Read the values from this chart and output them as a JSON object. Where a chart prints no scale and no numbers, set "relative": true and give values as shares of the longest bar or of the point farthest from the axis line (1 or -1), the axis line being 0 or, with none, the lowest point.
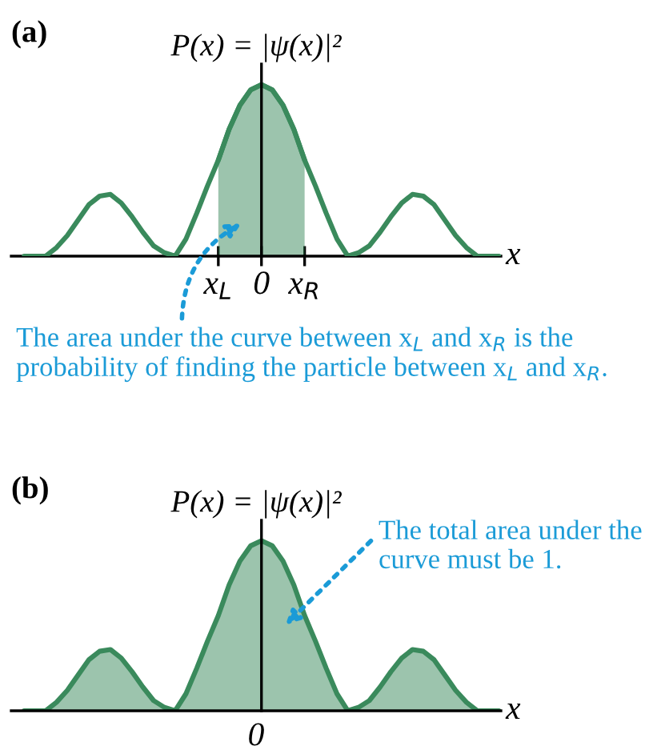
{
  "chart_data": [
    {
      "type": "line",
      "title": "(a)",
      "subtitle": "P(x) = |ψ(x)|²",
      "xlabel": "x",
      "relative": true,
      "tick_labels": "x",
      "categories": [
        null,
        null,
        null,
        null,
        null,
        null,
        null,
        null,
        null,
        null,
        null,
        null,
        null,
        null,
        null,
        null,
        null,
        null,
        "x$_{L}$",
        null,
        null,
        null,
        "0",
        null,
        null,
        null,
        "x$_{R}$",
        null,
        null,
        null,
        null,
        null,
        null,
        null,
        null,
        null,
        null,
        null,
        null,
        null,
        null,
        null,
        null,
        null,
        null
      ],
      "series": [
        {
          "color": "#3a8a5c",
          "values": [
            0,
            0,
            0,
            0.05,
            0.12,
            0.21,
            0.3,
            0.35,
            0.36,
            0.31,
            0.23,
            0.14,
            0.06,
            0.02,
            0,
            0.1,
            0.25,
            0.41,
            0.56,
            0.74,
            0.88,
            0.97,
            1,
            0.97,
            0.88,
            0.74,
            0.56,
            0.41,
            0.25,
            0.1,
            0,
            0.02,
            0.06,
            0.14,
            0.23,
            0.31,
            0.36,
            0.35,
            0.3,
            0.21,
            0.12,
            0.05,
            0,
            0,
            0
          ]
        },
        {
          "type": "area",
          "color": "#3a8a5c",
          "values": [
            null,
            null,
            null,
            null,
            null,
            null,
            null,
            null,
            null,
            null,
            null,
            null,
            null,
            null,
            null,
            null,
            null,
            null,
            0.56,
            0.74,
            0.88,
            0.97,
            1,
            0.97,
            0.88,
            0.74,
            0.56,
            null,
            null,
            null,
            null,
            null,
            null,
            null,
            null,
            null,
            null,
            null,
            null,
            null,
            null,
            null,
            null,
            null,
            null
          ]
        }
      ],
      "annotations": [
        "The area under the curve between x$_{L}$ and x$_{R}$ is the probability of finding the particle between x$_{L}$ and x$_{R}$."
      ]
    },
    {
      "type": "area",
      "title": "(b)",
      "subtitle": "P(x) = |ψ(x)|²",
      "xlabel": "x",
      "relative": true,
      "tick_labels": "x",
      "categories": [
        null,
        null,
        null,
        null,
        null,
        null,
        null,
        null,
        null,
        null,
        null,
        null,
        null,
        null,
        null,
        null,
        null,
        null,
        null,
        null,
        null,
        null,
        null,
        null,
        null,
        null,
        null,
        null,
        null,
        null,
        null,
        null,
        null,
        null,
        null,
        null,
        null,
        null,
        null,
        null,
        null,
        null,
        null,
        null,
        null
      ],
      "series": [
        {
          "color": "#3a8a5c",
          "values": [
            0,
            0,
            0,
            0.05,
            0.12,
            0.21,
            0.3,
            0.35,
            0.36,
            0.31,
            0.23,
            0.14,
            0.06,
            0.02,
            0,
            0.1,
            0.25,
            0.41,
            0.56,
            0.74,
            0.88,
            0.97,
            1,
            0.97,
            0.88,
            0.74,
            0.56,
            0.41,
            0.25,
            0.1,
            0,
            0.02,
            0.06,
            0.14,
            0.23,
            0.31,
            0.36,
            0.35,
            0.3,
            0.21,
            0.12,
            0.05,
            0,
            0,
            0
          ]
        }
      ],
      "annotations": [
        "The total area under the curve must be 1.",
        "0"
      ]
    }
  ]
}
